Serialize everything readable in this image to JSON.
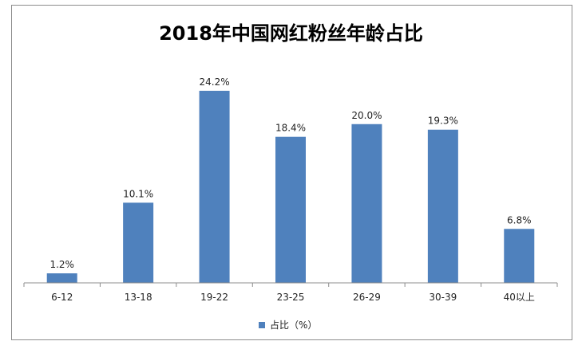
{
  "chart_data": {
    "type": "bar",
    "title": "2018年中国网红粉丝年龄占比",
    "categories": [
      "6-12",
      "13-18",
      "19-22",
      "23-25",
      "26-29",
      "30-39",
      "40以上"
    ],
    "series": [
      {
        "name": "占比（%）",
        "values": [
          1.2,
          10.1,
          24.2,
          18.4,
          20.0,
          19.3,
          6.8
        ],
        "labels": [
          "1.2%",
          "10.1%",
          "24.2%",
          "18.4%",
          "20.0%",
          "19.3%",
          "6.8%"
        ],
        "color": "#4f81bd"
      }
    ],
    "ylim": [
      0,
      26
    ],
    "grid": false,
    "legend": "bottom"
  }
}
